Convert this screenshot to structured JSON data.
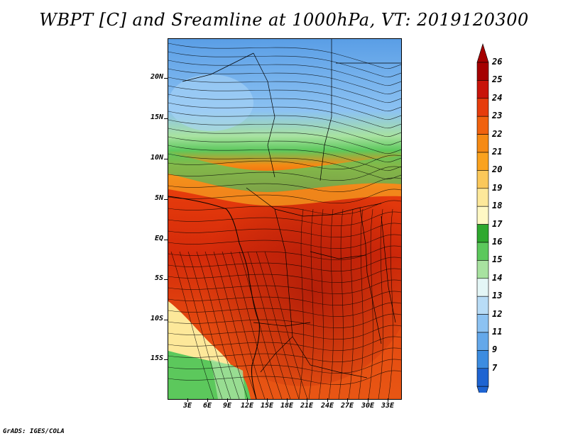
{
  "title": "WBPT [C] and Sreamline at 1000hPa, VT: 2019120300",
  "credit": "GrADS: IGES/COLA",
  "map": {
    "lat_labels": [
      "20N",
      "15N",
      "10N",
      "5N",
      "EQ",
      "5S",
      "10S",
      "15S"
    ],
    "lon_labels": [
      "3E",
      "6E",
      "9E",
      "12E",
      "15E",
      "18E",
      "21E",
      "24E",
      "27E",
      "30E",
      "33E"
    ]
  },
  "colorbar": {
    "labels": [
      "26",
      "25",
      "24",
      "23",
      "22",
      "21",
      "20",
      "19",
      "18",
      "17",
      "16",
      "15",
      "14",
      "13",
      "12",
      "11",
      "9",
      "7"
    ],
    "colors": [
      "#a50000",
      "#c8140a",
      "#e63c0c",
      "#f0620f",
      "#f58a14",
      "#faa21e",
      "#fbc85a",
      "#fde89a",
      "#fff8c4",
      "#2ea82e",
      "#5cc85c",
      "#a8e2a0",
      "#e4f6f6",
      "#b8dcf6",
      "#8cc2f2",
      "#64a8ea",
      "#3c8ce0",
      "#1e64d2"
    ]
  }
}
